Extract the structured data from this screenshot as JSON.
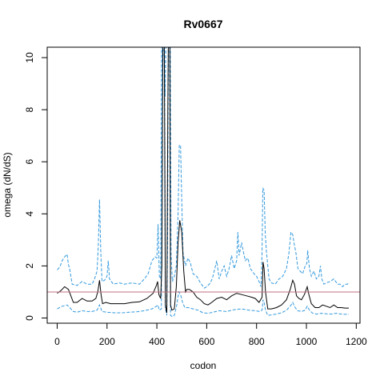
{
  "chart_data": {
    "type": "line",
    "title": "Rv0667",
    "xlabel": "codon",
    "ylabel": "omega (dN/dS)",
    "xlim": [
      -40,
      1215
    ],
    "ylim": [
      -0.2,
      10.4
    ],
    "xticks": [
      0,
      200,
      400,
      600,
      800,
      1000,
      1200
    ],
    "yticks": [
      0,
      2,
      4,
      6,
      8,
      10
    ],
    "grid": false,
    "legend": "none",
    "reference_line": {
      "y": 1,
      "color": "#c07080"
    },
    "colors": {
      "mean": "#000000",
      "interval": "#3399dd"
    },
    "series": [
      {
        "role": "mean",
        "style": "solid",
        "points": [
          [
            0,
            0.95
          ],
          [
            15,
            1.05
          ],
          [
            30,
            1.2
          ],
          [
            45,
            1.1
          ],
          [
            55,
            0.85
          ],
          [
            65,
            0.6
          ],
          [
            80,
            0.6
          ],
          [
            100,
            0.75
          ],
          [
            120,
            0.65
          ],
          [
            140,
            0.65
          ],
          [
            155,
            0.75
          ],
          [
            163,
            1.0
          ],
          [
            170,
            1.45
          ],
          [
            176,
            0.9
          ],
          [
            182,
            0.55
          ],
          [
            195,
            0.6
          ],
          [
            215,
            0.55
          ],
          [
            240,
            0.55
          ],
          [
            270,
            0.55
          ],
          [
            300,
            0.6
          ],
          [
            330,
            0.62
          ],
          [
            360,
            0.75
          ],
          [
            385,
            0.95
          ],
          [
            398,
            1.25
          ],
          [
            403,
            1.4
          ],
          [
            408,
            0.9
          ],
          [
            415,
            0.75
          ],
          [
            420,
            2.0
          ],
          [
            424,
            10.4
          ],
          [
            430,
            10.4
          ],
          [
            434,
            0.5
          ],
          [
            440,
            0.2
          ],
          [
            444,
            8.0
          ],
          [
            446,
            10.4
          ],
          [
            452,
            10.4
          ],
          [
            455,
            0.5
          ],
          [
            460,
            0.3
          ],
          [
            470,
            0.35
          ],
          [
            478,
            1.2
          ],
          [
            485,
            2.9
          ],
          [
            492,
            3.75
          ],
          [
            500,
            3.3
          ],
          [
            508,
            1.8
          ],
          [
            515,
            1.0
          ],
          [
            520,
            1.1
          ],
          [
            530,
            1.1
          ],
          [
            545,
            1.0
          ],
          [
            560,
            0.8
          ],
          [
            575,
            0.7
          ],
          [
            590,
            0.55
          ],
          [
            605,
            0.5
          ],
          [
            620,
            0.6
          ],
          [
            640,
            0.75
          ],
          [
            660,
            0.8
          ],
          [
            680,
            0.7
          ],
          [
            700,
            0.85
          ],
          [
            720,
            0.95
          ],
          [
            740,
            0.9
          ],
          [
            760,
            0.85
          ],
          [
            780,
            0.8
          ],
          [
            795,
            0.75
          ],
          [
            810,
            0.6
          ],
          [
            822,
            0.8
          ],
          [
            826,
            2.15
          ],
          [
            830,
            1.9
          ],
          [
            836,
            1.0
          ],
          [
            845,
            0.35
          ],
          [
            860,
            0.35
          ],
          [
            880,
            0.4
          ],
          [
            900,
            0.5
          ],
          [
            920,
            0.7
          ],
          [
            935,
            1.1
          ],
          [
            945,
            1.45
          ],
          [
            952,
            1.3
          ],
          [
            960,
            0.85
          ],
          [
            970,
            0.75
          ],
          [
            980,
            0.7
          ],
          [
            992,
            0.9
          ],
          [
            1003,
            1.2
          ],
          [
            1010,
            0.9
          ],
          [
            1020,
            0.55
          ],
          [
            1035,
            0.4
          ],
          [
            1050,
            0.4
          ],
          [
            1065,
            0.5
          ],
          [
            1080,
            0.45
          ],
          [
            1095,
            0.4
          ],
          [
            1110,
            0.5
          ],
          [
            1125,
            0.4
          ],
          [
            1140,
            0.4
          ],
          [
            1155,
            0.38
          ],
          [
            1170,
            0.38
          ]
        ]
      },
      {
        "role": "upper",
        "style": "dashed",
        "points": [
          [
            0,
            1.85
          ],
          [
            10,
            1.95
          ],
          [
            20,
            2.2
          ],
          [
            30,
            2.35
          ],
          [
            40,
            2.45
          ],
          [
            45,
            2.05
          ],
          [
            50,
            1.9
          ],
          [
            60,
            1.3
          ],
          [
            80,
            1.25
          ],
          [
            100,
            1.4
          ],
          [
            120,
            1.3
          ],
          [
            140,
            1.3
          ],
          [
            150,
            1.5
          ],
          [
            160,
            1.8
          ],
          [
            165,
            2.8
          ],
          [
            170,
            4.55
          ],
          [
            175,
            2.5
          ],
          [
            180,
            1.4
          ],
          [
            190,
            1.45
          ],
          [
            200,
            1.6
          ],
          [
            205,
            2.2
          ],
          [
            210,
            1.5
          ],
          [
            225,
            1.3
          ],
          [
            250,
            1.35
          ],
          [
            270,
            1.3
          ],
          [
            300,
            1.35
          ],
          [
            330,
            1.3
          ],
          [
            350,
            1.5
          ],
          [
            365,
            1.7
          ],
          [
            380,
            2.2
          ],
          [
            393,
            2.35
          ],
          [
            400,
            2.3
          ],
          [
            405,
            3.6
          ],
          [
            410,
            1.6
          ],
          [
            415,
            1.5
          ],
          [
            419,
            10.4
          ],
          [
            428,
            10.4
          ],
          [
            433,
            8.5
          ],
          [
            436,
            10.4
          ],
          [
            441,
            10.4
          ],
          [
            446,
            10.4
          ],
          [
            454,
            10.4
          ],
          [
            457,
            2.5
          ],
          [
            462,
            1.4
          ],
          [
            470,
            1.6
          ],
          [
            478,
            2.0
          ],
          [
            485,
            4.0
          ],
          [
            490,
            6.65
          ],
          [
            495,
            6.6
          ],
          [
            500,
            4.5
          ],
          [
            505,
            2.5
          ],
          [
            515,
            2.0
          ],
          [
            525,
            2.3
          ],
          [
            535,
            2.1
          ],
          [
            545,
            1.7
          ],
          [
            560,
            1.6
          ],
          [
            575,
            1.35
          ],
          [
            590,
            1.15
          ],
          [
            600,
            1.2
          ],
          [
            615,
            1.35
          ],
          [
            625,
            1.6
          ],
          [
            640,
            2.2
          ],
          [
            650,
            1.5
          ],
          [
            660,
            1.8
          ],
          [
            670,
            2.0
          ],
          [
            680,
            1.6
          ],
          [
            690,
            1.9
          ],
          [
            700,
            2.4
          ],
          [
            710,
            1.9
          ],
          [
            720,
            2.2
          ],
          [
            725,
            3.3
          ],
          [
            730,
            2.4
          ],
          [
            740,
            2.9
          ],
          [
            748,
            2.5
          ],
          [
            755,
            2.2
          ],
          [
            765,
            2.3
          ],
          [
            775,
            1.9
          ],
          [
            790,
            1.7
          ],
          [
            800,
            1.6
          ],
          [
            810,
            1.4
          ],
          [
            818,
            1.2
          ],
          [
            822,
            2.6
          ],
          [
            825,
            5.0
          ],
          [
            830,
            4.9
          ],
          [
            835,
            3.2
          ],
          [
            840,
            2.5
          ],
          [
            850,
            1.5
          ],
          [
            860,
            1.35
          ],
          [
            875,
            1.3
          ],
          [
            890,
            1.5
          ],
          [
            905,
            1.6
          ],
          [
            920,
            1.9
          ],
          [
            930,
            2.5
          ],
          [
            938,
            3.3
          ],
          [
            945,
            3.2
          ],
          [
            950,
            2.9
          ],
          [
            958,
            2.5
          ],
          [
            966,
            1.9
          ],
          [
            975,
            1.8
          ],
          [
            985,
            1.7
          ],
          [
            995,
            2.0
          ],
          [
            1002,
            2.1
          ],
          [
            1005,
            2.6
          ],
          [
            1012,
            1.9
          ],
          [
            1020,
            1.6
          ],
          [
            1030,
            1.8
          ],
          [
            1040,
            1.5
          ],
          [
            1050,
            1.6
          ],
          [
            1056,
            2.0
          ],
          [
            1062,
            1.5
          ],
          [
            1070,
            1.3
          ],
          [
            1080,
            1.35
          ],
          [
            1095,
            1.4
          ],
          [
            1110,
            1.5
          ],
          [
            1125,
            1.3
          ],
          [
            1135,
            1.3
          ],
          [
            1145,
            1.2
          ],
          [
            1155,
            1.3
          ],
          [
            1165,
            1.3
          ],
          [
            1170,
            1.35
          ]
        ]
      },
      {
        "role": "lower",
        "style": "dashed",
        "points": [
          [
            0,
            0.35
          ],
          [
            20,
            0.45
          ],
          [
            40,
            0.5
          ],
          [
            55,
            0.35
          ],
          [
            65,
            0.25
          ],
          [
            80,
            0.22
          ],
          [
            100,
            0.28
          ],
          [
            120,
            0.25
          ],
          [
            140,
            0.25
          ],
          [
            160,
            0.3
          ],
          [
            170,
            0.5
          ],
          [
            180,
            0.25
          ],
          [
            200,
            0.22
          ],
          [
            230,
            0.2
          ],
          [
            260,
            0.2
          ],
          [
            290,
            0.22
          ],
          [
            320,
            0.24
          ],
          [
            350,
            0.28
          ],
          [
            380,
            0.35
          ],
          [
            398,
            0.45
          ],
          [
            404,
            0.5
          ],
          [
            410,
            0.3
          ],
          [
            418,
            0.35
          ],
          [
            423,
            10.4
          ],
          [
            431,
            10.4
          ],
          [
            434,
            0.4
          ],
          [
            440,
            0.1
          ],
          [
            443,
            3.0
          ],
          [
            446,
            10.4
          ],
          [
            451,
            10.4
          ],
          [
            455,
            0.1
          ],
          [
            462,
            0.05
          ],
          [
            470,
            0.1
          ],
          [
            480,
            0.5
          ],
          [
            488,
            1.0
          ],
          [
            495,
            0.9
          ],
          [
            503,
            0.6
          ],
          [
            512,
            0.4
          ],
          [
            525,
            0.4
          ],
          [
            545,
            0.35
          ],
          [
            565,
            0.3
          ],
          [
            585,
            0.2
          ],
          [
            605,
            0.18
          ],
          [
            625,
            0.22
          ],
          [
            650,
            0.28
          ],
          [
            680,
            0.25
          ],
          [
            710,
            0.32
          ],
          [
            740,
            0.35
          ],
          [
            770,
            0.3
          ],
          [
            795,
            0.28
          ],
          [
            812,
            0.25
          ],
          [
            822,
            0.3
          ],
          [
            826,
            0.7
          ],
          [
            830,
            0.6
          ],
          [
            836,
            0.3
          ],
          [
            845,
            0.1
          ],
          [
            860,
            0.12
          ],
          [
            880,
            0.15
          ],
          [
            900,
            0.2
          ],
          [
            920,
            0.3
          ],
          [
            935,
            0.45
          ],
          [
            945,
            0.6
          ],
          [
            955,
            0.4
          ],
          [
            965,
            0.28
          ],
          [
            980,
            0.25
          ],
          [
            995,
            0.3
          ],
          [
            1003,
            0.45
          ],
          [
            1012,
            0.3
          ],
          [
            1025,
            0.18
          ],
          [
            1040,
            0.15
          ],
          [
            1060,
            0.18
          ],
          [
            1080,
            0.16
          ],
          [
            1100,
            0.15
          ],
          [
            1120,
            0.18
          ],
          [
            1140,
            0.15
          ],
          [
            1160,
            0.14
          ],
          [
            1170,
            0.14
          ]
        ]
      }
    ]
  }
}
